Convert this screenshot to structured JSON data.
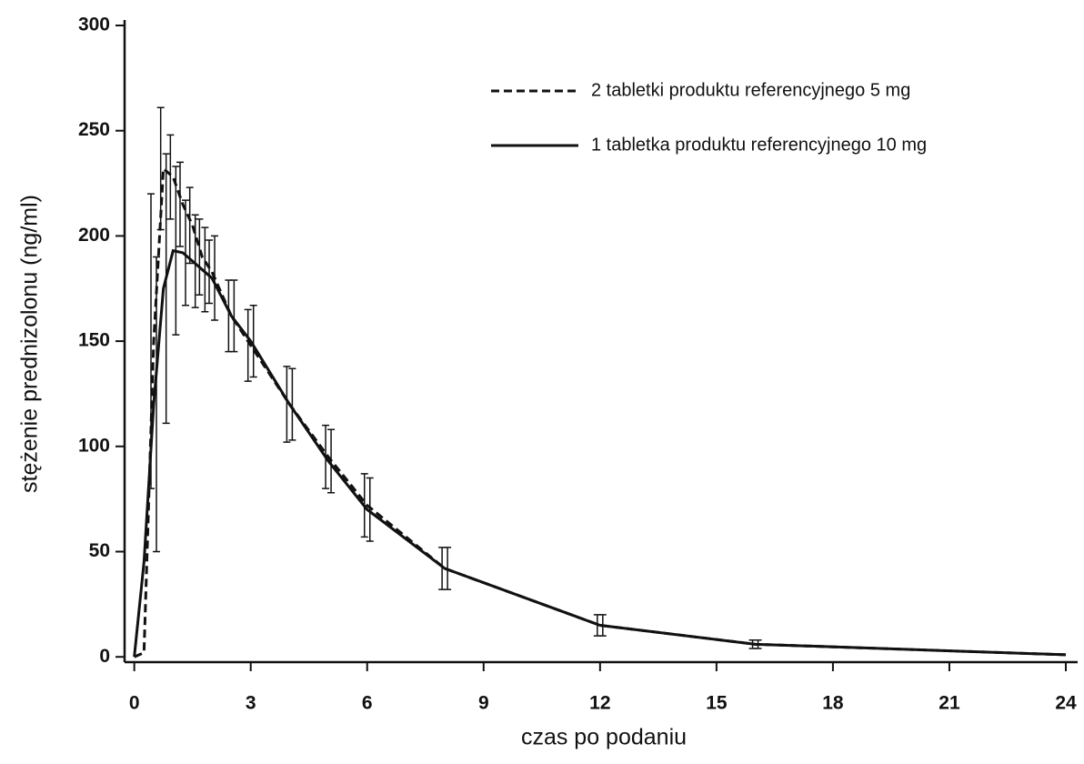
{
  "chart_data": {
    "type": "line",
    "x_label": "czas po podaniu",
    "y_label": "stężenie prednizolonu (ng/ml)",
    "x": [
      0,
      0.25,
      0.5,
      0.75,
      1,
      1.25,
      1.5,
      1.75,
      2,
      2.5,
      3,
      4,
      5,
      6,
      8,
      12,
      16,
      24
    ],
    "series": [
      {
        "name": "2 tabletki produktu referencyjnego 5 mg",
        "color": "#111",
        "dash": true,
        "values": [
          0,
          2,
          150,
          232,
          228,
          215,
          205,
          190,
          183,
          162,
          148,
          120,
          95,
          72,
          42,
          15,
          6,
          1
        ],
        "errors": [
          null,
          null,
          70,
          29,
          20,
          20,
          18,
          18,
          15,
          17,
          17,
          18,
          15,
          15,
          10,
          5,
          2,
          null
        ]
      },
      {
        "name": "1 tabletka produktu referencyjnego 10 mg",
        "color": "#111",
        "dash": false,
        "values": [
          0,
          45,
          120,
          175,
          193,
          192,
          188,
          184,
          180,
          162,
          150,
          120,
          93,
          70,
          42,
          15,
          6,
          1
        ],
        "errors": [
          null,
          null,
          70,
          64,
          40,
          25,
          22,
          20,
          20,
          17,
          17,
          17,
          15,
          15,
          10,
          5,
          2,
          null
        ]
      }
    ],
    "xlim": [
      -0.25,
      24
    ],
    "xticks": [
      0,
      3,
      6,
      9,
      12,
      15,
      18,
      21,
      24
    ],
    "ylim": [
      -2.5,
      300
    ],
    "yticks": [
      0,
      50,
      100,
      150,
      200,
      250,
      300
    ],
    "legend": "top-right",
    "grid": false
  }
}
